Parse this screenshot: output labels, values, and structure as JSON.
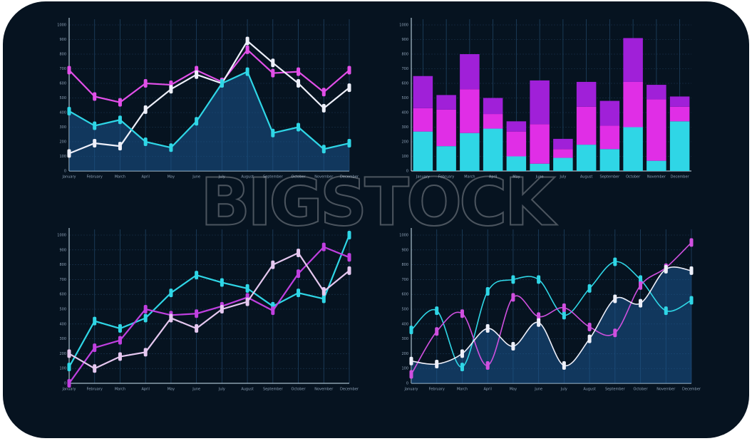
{
  "watermark": "BIGSTOCK",
  "chart_data": [
    {
      "type": "line",
      "categories": [
        "January",
        "February",
        "March",
        "April",
        "May",
        "June",
        "July",
        "August",
        "September",
        "October",
        "November",
        "December"
      ],
      "ylim": [
        0,
        1000
      ],
      "yticks": [
        0,
        100,
        200,
        300,
        400,
        500,
        600,
        700,
        800,
        900,
        1000
      ],
      "grid": true,
      "area": true,
      "smooth": false,
      "series": [
        {
          "color": "#e24fe8",
          "values": [
            690,
            510,
            470,
            600,
            590,
            690,
            610,
            830,
            670,
            680,
            540,
            690
          ]
        },
        {
          "color": "#eef0fa",
          "values": [
            120,
            190,
            170,
            420,
            560,
            660,
            600,
            890,
            740,
            600,
            430,
            570
          ]
        },
        {
          "color": "#2fd6e6",
          "values": [
            410,
            310,
            350,
            200,
            160,
            340,
            600,
            680,
            260,
            300,
            150,
            190
          ]
        }
      ]
    },
    {
      "type": "bar",
      "categories": [
        "January",
        "February",
        "March",
        "April",
        "May",
        "June",
        "July",
        "August",
        "September",
        "October",
        "November",
        "December"
      ],
      "ylim": [
        0,
        1000
      ],
      "yticks": [
        0,
        100,
        200,
        300,
        400,
        500,
        600,
        700,
        800,
        900,
        1000
      ],
      "grid": true,
      "stacked": true,
      "series": [
        {
          "color": "#2fd6e6",
          "values": [
            270,
            170,
            260,
            290,
            100,
            50,
            90,
            180,
            150,
            300,
            70,
            340
          ]
        },
        {
          "color": "#e02ee6",
          "values": [
            160,
            250,
            300,
            100,
            170,
            270,
            60,
            260,
            160,
            310,
            420,
            100
          ]
        },
        {
          "color": "#a020d8",
          "values": [
            220,
            100,
            240,
            110,
            70,
            300,
            70,
            170,
            170,
            300,
            100,
            70
          ]
        }
      ]
    },
    {
      "type": "line",
      "categories": [
        "January",
        "February",
        "March",
        "April",
        "May",
        "June",
        "July",
        "August",
        "September",
        "October",
        "November",
        "December"
      ],
      "ylim": [
        0,
        1000
      ],
      "yticks": [
        0,
        100,
        200,
        300,
        400,
        500,
        600,
        700,
        800,
        900,
        1000
      ],
      "grid": true,
      "area": false,
      "smooth": false,
      "series": [
        {
          "color": "#2fd6e6",
          "values": [
            110,
            420,
            370,
            440,
            610,
            730,
            680,
            640,
            520,
            610,
            570,
            1000
          ]
        },
        {
          "color": "#c040e0",
          "values": [
            0,
            240,
            290,
            500,
            460,
            470,
            520,
            580,
            490,
            740,
            920,
            850
          ]
        },
        {
          "color": "#e6c8f0",
          "values": [
            200,
            100,
            180,
            210,
            440,
            370,
            500,
            550,
            800,
            880,
            620,
            760
          ]
        }
      ]
    },
    {
      "type": "line",
      "categories": [
        "January",
        "February",
        "March",
        "April",
        "May",
        "June",
        "July",
        "August",
        "September",
        "October",
        "November",
        "December"
      ],
      "ylim": [
        0,
        1000
      ],
      "yticks": [
        0,
        100,
        200,
        300,
        400,
        500,
        600,
        700,
        800,
        900,
        1000
      ],
      "grid": true,
      "area": true,
      "smooth": true,
      "series": [
        {
          "color": "#2fd6e6",
          "values": [
            360,
            490,
            110,
            620,
            700,
            700,
            460,
            640,
            820,
            700,
            490,
            560
          ]
        },
        {
          "color": "#d050e0",
          "values": [
            60,
            350,
            470,
            120,
            580,
            450,
            510,
            380,
            340,
            660,
            780,
            950
          ]
        },
        {
          "color": "#eef0fa",
          "values": [
            150,
            130,
            200,
            370,
            250,
            410,
            120,
            300,
            570,
            540,
            770,
            760
          ]
        }
      ]
    }
  ]
}
